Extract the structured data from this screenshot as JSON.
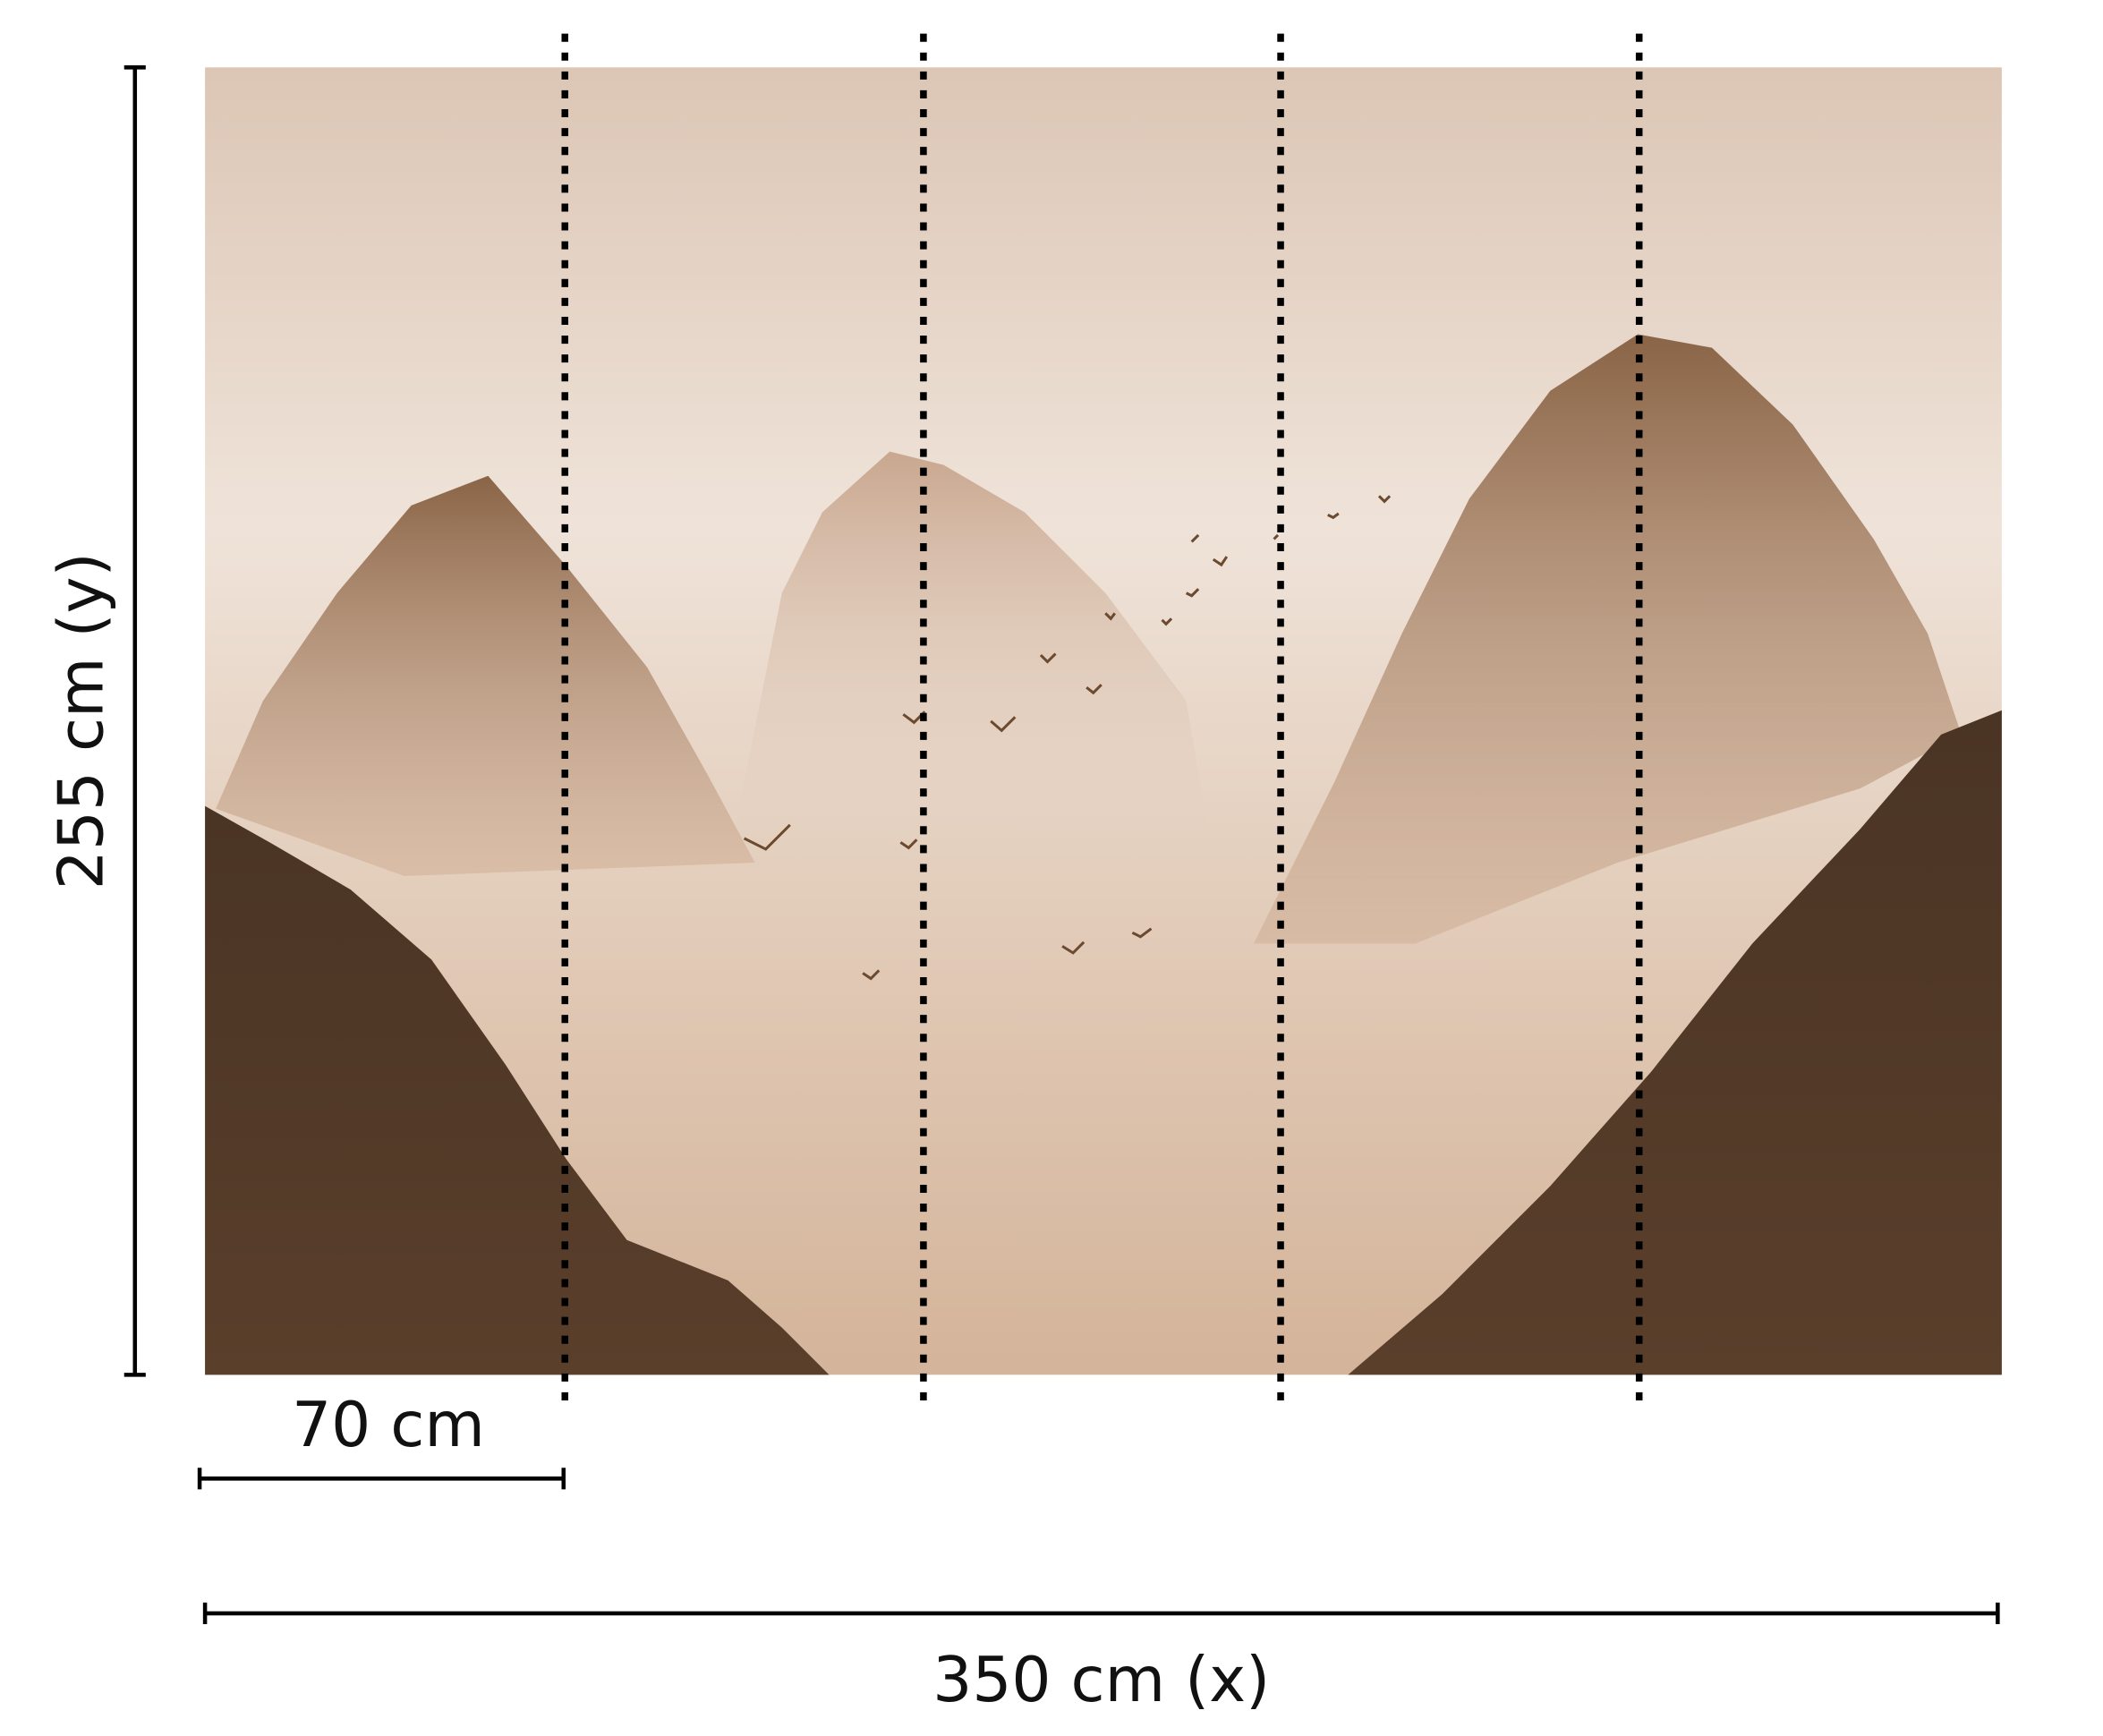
{
  "dimensions": {
    "height_label": "255 cm (y)",
    "panel_width_label": "70 cm",
    "width_label": "350 cm (x)"
  },
  "panels": {
    "count": 5,
    "divider_style": "dotted"
  },
  "artwork": {
    "palette": {
      "sky_light": "#efe3d9",
      "sky_mid": "#dcc5b2",
      "mountain_mid": "#a67d5c",
      "mountain_dark": "#3e2d21"
    }
  }
}
